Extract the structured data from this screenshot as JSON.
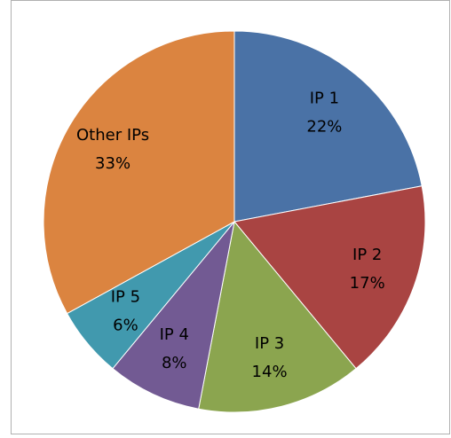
{
  "chart_data": {
    "type": "pie",
    "categories": [
      "IP 1",
      "IP 2",
      "IP 3",
      "IP 4",
      "IP 5",
      "Other IPs"
    ],
    "values": [
      22,
      17,
      14,
      8,
      6,
      33
    ],
    "value_labels": [
      "22%",
      "17%",
      "14%",
      "8%",
      "6%",
      "33%"
    ],
    "colors": [
      "#4a72a6",
      "#a94442",
      "#8ba54f",
      "#725a93",
      "#4199ae",
      "#db8440"
    ]
  }
}
